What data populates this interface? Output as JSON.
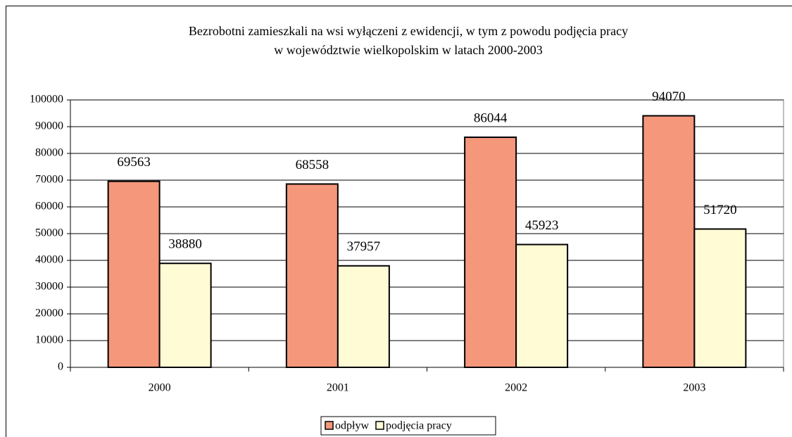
{
  "chart_data": {
    "type": "bar",
    "title": [
      "Bezrobotni zamieszkali na wsi wyłączeni z ewidencji,  w tym z powodu podjęcia pracy",
      "w województwie wielkopolskim w latach 2000-2003"
    ],
    "categories": [
      "2000",
      "2001",
      "2002",
      "2003"
    ],
    "series": [
      {
        "name": "odpływ",
        "color": "#f4977a",
        "values": [
          69563,
          68558,
          86044,
          94070
        ]
      },
      {
        "name": "podjęcia pracy",
        "color": "#fffbd5",
        "values": [
          38880,
          37957,
          45923,
          51720
        ]
      }
    ],
    "ylim": [
      0,
      100000
    ],
    "yticks": [
      0,
      10000,
      20000,
      30000,
      40000,
      50000,
      60000,
      70000,
      80000,
      90000,
      100000
    ],
    "grid": true,
    "legend": "bottom"
  }
}
